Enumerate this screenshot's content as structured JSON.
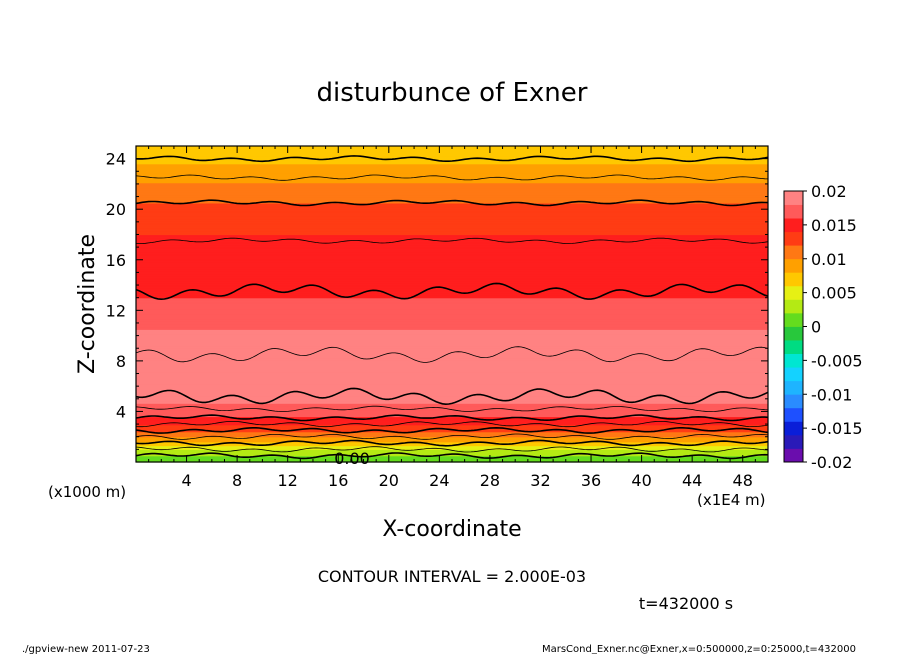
{
  "chart_data": {
    "type": "heatmap",
    "title": "disturbunce of Exner",
    "xlabel": "X-coordinate",
    "ylabel": "Z-coordinate",
    "x_unit": "(x1E4 m)",
    "y_unit": "(x1000 m)",
    "xlim": [
      0,
      50
    ],
    "ylim": [
      0,
      25
    ],
    "xticks": [
      "4",
      "8",
      "12",
      "16",
      "20",
      "24",
      "28",
      "32",
      "36",
      "40",
      "44",
      "48"
    ],
    "yticks": [
      "4",
      "8",
      "12",
      "16",
      "20",
      "24"
    ],
    "contour_interval": "CONTOUR INTERVAL = 2.000E-03",
    "contour_label": "0.00",
    "time_label": "t=432000 s",
    "footer_left": "./gpview-new   2011-07-23",
    "footer_right": "MarsCond_Exner.nc@Exner,x=0:500000,z=0:25000,t=432000",
    "colorbar": {
      "levels": [
        -0.02,
        -0.018,
        -0.016,
        -0.014,
        -0.012,
        -0.01,
        -0.008,
        -0.006,
        -0.004,
        -0.002,
        0,
        0.002,
        0.004,
        0.006,
        0.008,
        0.01,
        0.012,
        0.014,
        0.016,
        0.018,
        0.02
      ],
      "colors": [
        "#6a0dad",
        "#2a1ab8",
        "#0a1ed8",
        "#1e50ff",
        "#2a8cff",
        "#1eb4ff",
        "#14d2ff",
        "#00e6d2",
        "#00dc82",
        "#28c83c",
        "#64dc1e",
        "#b4ea14",
        "#e6f014",
        "#ffc800",
        "#ffa000",
        "#ff7814",
        "#ff3c14",
        "#ff1e1e",
        "#ff5a5a",
        "#ff8282"
      ],
      "labels": [
        "0.02",
        "0.015",
        "0.01",
        "0.005",
        "0",
        "-0.005",
        "-0.01",
        "-0.015",
        "-0.02"
      ]
    },
    "profile_by_height_km": [
      {
        "z": 0,
        "value": 0.0
      },
      {
        "z": 0.5,
        "value": 0.002
      },
      {
        "z": 1.0,
        "value": 0.004
      },
      {
        "z": 1.6,
        "value": 0.008
      },
      {
        "z": 2.4,
        "value": 0.012
      },
      {
        "z": 3.2,
        "value": 0.015
      },
      {
        "z": 4.0,
        "value": 0.017
      },
      {
        "z": 5.0,
        "value": 0.0185
      },
      {
        "z": 6.5,
        "value": 0.0195
      },
      {
        "z": 8.0,
        "value": 0.0205
      },
      {
        "z": 9.5,
        "value": 0.019
      },
      {
        "z": 11.0,
        "value": 0.0175
      },
      {
        "z": 13.0,
        "value": 0.016
      },
      {
        "z": 16.0,
        "value": 0.015
      },
      {
        "z": 19.0,
        "value": 0.0135
      },
      {
        "z": 21.0,
        "value": 0.0115
      },
      {
        "z": 22.5,
        "value": 0.0095
      },
      {
        "z": 24.0,
        "value": 0.0075
      },
      {
        "z": 25.0,
        "value": 0.006
      }
    ],
    "contour_heights_km": [
      0.5,
      1.0,
      1.5,
      2.0,
      2.5,
      3.0,
      3.5,
      4.2,
      5.2,
      8.5,
      13.5,
      17.5,
      20.5,
      22.5,
      24.0
    ]
  }
}
